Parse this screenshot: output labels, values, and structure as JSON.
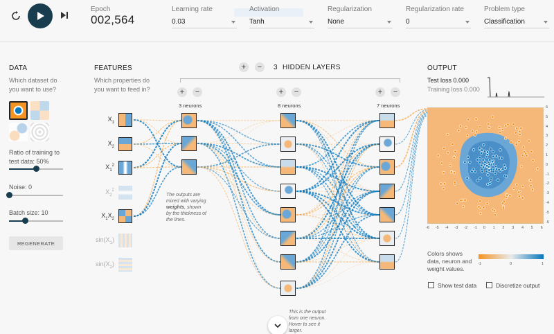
{
  "controls": {
    "epoch_label": "Epoch",
    "epoch_value": "002,564",
    "learning_rate": {
      "label": "Learning rate",
      "value": "0.03"
    },
    "activation": {
      "label": "Activation",
      "value": "Tanh"
    },
    "regularization": {
      "label": "Regularization",
      "value": "None"
    },
    "regularization_rate": {
      "label": "Regularization rate",
      "value": "0"
    },
    "problem_type": {
      "label": "Problem type",
      "value": "Classification"
    }
  },
  "data": {
    "title": "DATA",
    "prompt": [
      "Which dataset do",
      "you want to use?"
    ],
    "ratio_label": [
      "Ratio of training to",
      "test data:  50%"
    ],
    "ratio_fraction": 0.5,
    "noise_label": "Noise:  0",
    "noise_fraction": 0.0,
    "batch_label": "Batch size:  10",
    "batch_fraction": 0.3,
    "regenerate": "REGENERATE"
  },
  "features": {
    "title": "FEATURES",
    "prompt": [
      "Which properties do",
      "you want to feed in?"
    ],
    "items": [
      {
        "base": "X",
        "sub": "1",
        "sup": "",
        "active": true
      },
      {
        "base": "X",
        "sub": "2",
        "sup": "",
        "active": true
      },
      {
        "base": "X",
        "sub": "1",
        "sup": "2",
        "active": true
      },
      {
        "base": "X",
        "sub": "2",
        "sup": "2",
        "active": false
      },
      {
        "base": "X",
        "sub": "1",
        "sup": "",
        "tail": "X",
        "sub2": "2",
        "active": true
      },
      {
        "base": "sin(X",
        "sub": "1",
        "sup": "",
        "close": ")",
        "active": false
      },
      {
        "base": "sin(X",
        "sub": "2",
        "sup": "",
        "close": ")",
        "active": false
      }
    ]
  },
  "network": {
    "hidden_layers_count": "3",
    "hidden_layers_label": "HIDDEN LAYERS",
    "layers": [
      {
        "label": "3 neurons",
        "count": 3
      },
      {
        "label": "8 neurons",
        "count": 8
      },
      {
        "label": "7 neurons",
        "count": 7
      }
    ],
    "weights_note": [
      "The outputs are",
      "mixed with varying",
      "weights, shown",
      "by the thickness of",
      "the lines."
    ],
    "weights_note_bold": "weights",
    "neuron_note": [
      "This is the output",
      "from one neuron.",
      "Hover to see it",
      "larger."
    ]
  },
  "output": {
    "title": "OUTPUT",
    "test_loss": "Test loss 0.000",
    "training_loss": "Training loss 0.000",
    "y_ticks": [
      "6",
      "5",
      "4",
      "3",
      "2",
      "1",
      "0",
      "-1",
      "-2",
      "-3",
      "-4",
      "-5",
      "-6"
    ],
    "x_ticks": [
      "-6",
      "-5",
      "-4",
      "-3",
      "-2",
      "-1",
      "0",
      "1",
      "2",
      "3",
      "4",
      "5",
      "6"
    ],
    "legend_text": [
      "Colors shows",
      "data, neuron and",
      "weight values."
    ],
    "legend_ticks": [
      "-1",
      "0",
      "1"
    ],
    "show_test_data": "Show test data",
    "discretize_output": "Discretize output"
  },
  "colors": {
    "positive": "#0877bd",
    "negative": "#f59322",
    "dark": "#183D4E"
  }
}
